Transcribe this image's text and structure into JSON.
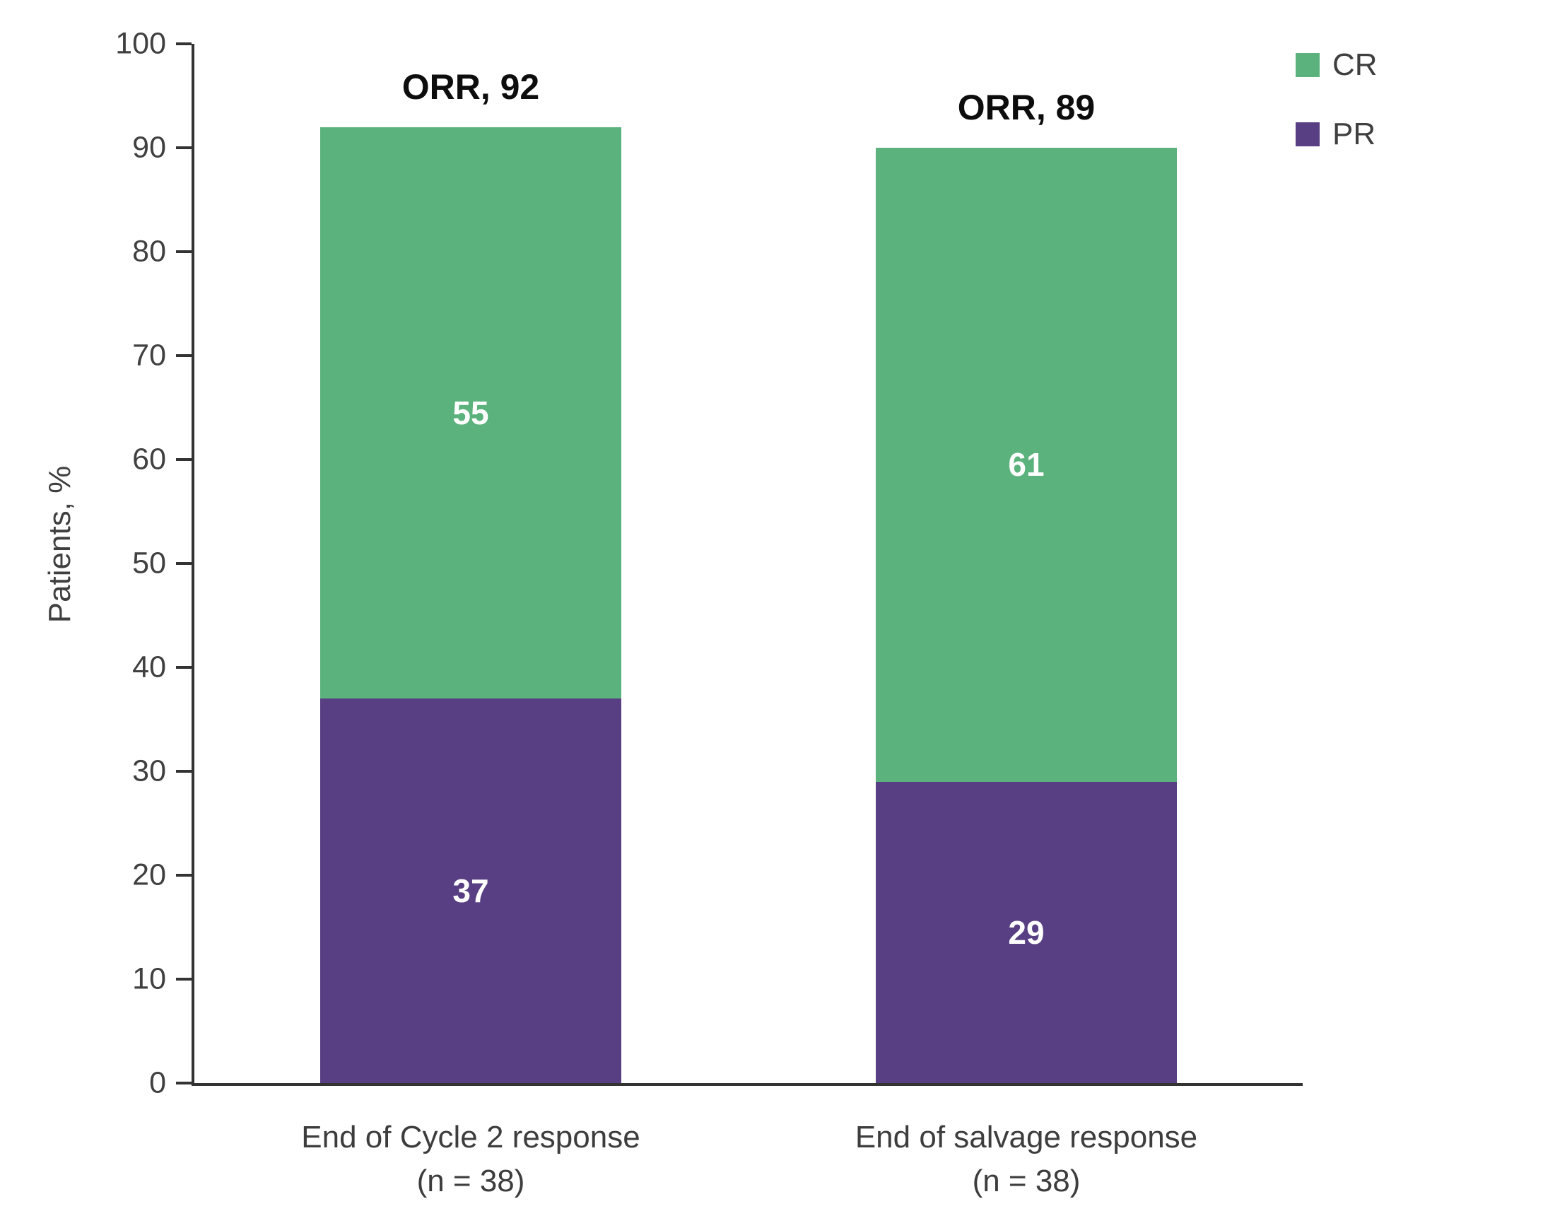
{
  "chart_data": {
    "type": "bar",
    "stacked": true,
    "ylabel": "Patients, %",
    "ylim": [
      0,
      100
    ],
    "yticks": [
      0,
      10,
      20,
      30,
      40,
      50,
      60,
      70,
      80,
      90,
      100
    ],
    "grid": false,
    "legend_position": "top-right",
    "categories": [
      {
        "label": "End of Cycle 2 response",
        "sublabel": "(n = 38)"
      },
      {
        "label": "End of salvage response",
        "sublabel": "(n = 38)"
      }
    ],
    "series": [
      {
        "name": "PR",
        "color": "#583F83",
        "values": [
          37,
          29
        ]
      },
      {
        "name": "CR",
        "color": "#5CB27D",
        "values": [
          55,
          61
        ]
      }
    ],
    "annotations": [
      "ORR, 92",
      "ORR, 89"
    ],
    "totals": [
      92,
      90
    ]
  },
  "colors": {
    "cr_green": "#5CB27D",
    "pr_purple": "#583F83",
    "axis": "#333333",
    "text": "#3f3f3f"
  },
  "legend": [
    {
      "label": "CR",
      "color": "#5CB27D"
    },
    {
      "label": "PR",
      "color": "#583F83"
    }
  ]
}
